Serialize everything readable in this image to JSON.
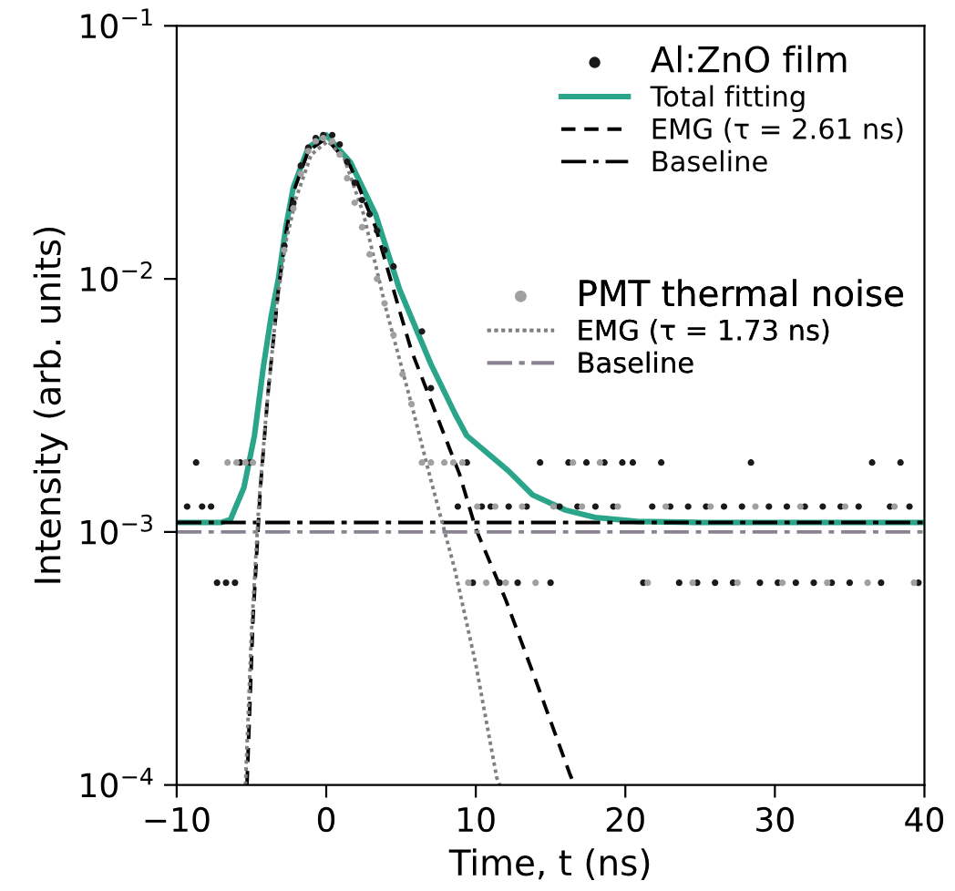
{
  "chart_data": {
    "type": "line",
    "xlabel": "Time, t (ns)",
    "ylabel": "Intensity (arb. units)",
    "xlim": [
      -10,
      40
    ],
    "xticks": [
      {
        "value": -10,
        "label": "−10"
      },
      0,
      10,
      20,
      30,
      40
    ],
    "ylim": [
      0.0001,
      0.1
    ],
    "yticks": [
      {
        "value": 0.0001,
        "label": "10$^{−4}$"
      },
      {
        "value": 0.001,
        "label": "10$^{−3}$"
      },
      {
        "value": 0.01,
        "label": "10$^{−2}$"
      },
      {
        "value": 0.1,
        "label": "10$^{−1}$"
      }
    ],
    "log": "y",
    "grid": false,
    "legend": "top right",
    "series": [
      {
        "type": "scatter",
        "name": "Al:ZnO film",
        "color": "#1a1a1a",
        "marker": "circle",
        "x": [
          -9.3,
          -8.7,
          -8.3,
          -7.7,
          -7.3,
          -6.7,
          -6.1,
          -5.75,
          -5.1,
          -2.8,
          -2.2,
          -1.7,
          -1.2,
          -0.7,
          -0.2,
          0.4,
          0.9,
          1.4,
          1.9,
          2.4,
          2.9,
          3.4,
          3.9,
          4.5,
          6.4,
          7.0,
          8.8,
          9.4,
          9.8,
          10.4,
          11.0,
          11.6,
          12.2,
          12.8,
          13.4,
          14.3,
          15.0,
          15.6,
          16.2,
          16.8,
          17.4,
          18.0,
          18.6,
          19.2,
          19.8,
          20.5,
          21.2,
          21.8,
          22.4,
          23.0,
          23.6,
          24.2,
          24.8,
          25.4,
          26.0,
          26.6,
          27.2,
          27.8,
          28.4,
          29.0,
          29.6,
          30.2,
          30.8,
          31.4,
          32.0,
          32.6,
          33.2,
          33.8,
          34.4,
          35.0,
          35.6,
          36.5,
          37.1,
          37.7,
          38.4,
          39.0,
          39.6
        ],
        "values": [
          0.00126,
          0.00188,
          0.00126,
          0.00126,
          0.00063,
          0.00063,
          0.00063,
          0.00188,
          0.00188,
          0.0135,
          0.02,
          0.028,
          0.033,
          0.036,
          0.037,
          0.037,
          0.034,
          0.029,
          0.024,
          0.0205,
          0.018,
          0.0155,
          0.013,
          0.0112,
          0.0062,
          0.0037,
          0.00126,
          0.00188,
          0.00063,
          0.00126,
          0.00126,
          0.00063,
          0.00126,
          0.00063,
          0.00126,
          0.00188,
          0.00063,
          0.00126,
          0.00188,
          0.00126,
          0.00188,
          0.00126,
          0.00188,
          0.00126,
          0.00188,
          0.00188,
          0.00063,
          0.00126,
          0.00188,
          0.00126,
          0.00063,
          0.00126,
          0.00063,
          0.00126,
          0.00063,
          0.00126,
          0.00063,
          0.00126,
          0.00188,
          0.00063,
          0.00126,
          0.00063,
          0.00126,
          0.00063,
          0.00126,
          0.00063,
          0.00126,
          0.00063,
          0.00126,
          0.00063,
          0.00126,
          0.00188,
          0.00063,
          0.00126,
          0.00188,
          0.00126,
          0.00063
        ]
      },
      {
        "name": "Total fitting",
        "color": "#2aa58a",
        "line_style": "solid",
        "x": [
          -10,
          -7,
          -6.4,
          -5.5,
          -4.8,
          -4.2,
          -3.7,
          -3.2,
          -2.7,
          -2.2,
          -1.2,
          0,
          1.6,
          3.3,
          4.9,
          7.0,
          8.6,
          9.4,
          12.2,
          13.8,
          16,
          18,
          20.8,
          25,
          40
        ],
        "values": [
          0.00109,
          0.00109,
          0.00112,
          0.0015,
          0.0024,
          0.0045,
          0.007,
          0.01,
          0.016,
          0.023,
          0.033,
          0.037,
          0.029,
          0.018,
          0.0091,
          0.0046,
          0.00294,
          0.0024,
          0.00174,
          0.0014,
          0.00122,
          0.00114,
          0.0011,
          0.00109,
          0.00109
        ]
      },
      {
        "name": "EMG (τ = 2.61 ns)",
        "color": "#000000",
        "line_style": "dashed",
        "x": [
          -5.3,
          -4.9,
          -4.4,
          -3.9,
          -3.2,
          -2.7,
          -2.2,
          -1.2,
          0,
          1.6,
          3.3,
          4.9,
          5.7,
          7.0,
          8.9,
          10,
          12,
          14,
          16.3,
          16.6
        ],
        "values": [
          0.0001,
          0.00045,
          0.0015,
          0.0035,
          0.009,
          0.015,
          0.022,
          0.032,
          0.036,
          0.028,
          0.016,
          0.0075,
          0.0052,
          0.0033,
          0.0017,
          0.00103,
          0.00054,
          0.00026,
          0.00011,
          0.0001
        ]
      },
      {
        "name": "Baseline",
        "color": "#000000",
        "line_style": "dash-dot",
        "x": [
          -10,
          40
        ],
        "values": [
          0.00109,
          0.00109
        ]
      },
      {
        "type": "scatter",
        "name": "PMT thermal noise",
        "color": "#a0a0a0",
        "marker": "circle",
        "x": [
          -6.6,
          -6.0,
          -5.4,
          -4.9,
          -2.8,
          -2.2,
          -1.7,
          -1.2,
          -0.7,
          -0.2,
          0.4,
          0.9,
          1.4,
          1.9,
          2.4,
          2.9,
          3.4,
          3.9,
          4.5,
          5.1,
          5.7,
          6.4,
          7.0,
          7.9,
          8.5,
          9.1,
          9.5,
          10.1,
          10.7,
          11.3,
          12.0,
          13.1,
          14.0,
          15.2,
          16.5,
          17.1,
          18.3,
          19.5,
          21.5,
          22.7,
          24.5,
          25.7,
          27.5,
          28.7,
          30.5,
          31.7,
          33.5,
          34.7,
          36.2,
          38.0,
          39.3
        ],
        "values": [
          0.00188,
          0.00188,
          0.00188,
          0.00188,
          0.013,
          0.019,
          0.026,
          0.032,
          0.035,
          0.036,
          0.035,
          0.031,
          0.025,
          0.02,
          0.016,
          0.0125,
          0.01,
          0.008,
          0.006,
          0.0042,
          0.0032,
          0.00188,
          0.00188,
          0.00188,
          0.00188,
          0.00188,
          0.00063,
          0.00126,
          0.00063,
          0.00126,
          0.00063,
          0.00126,
          0.00063,
          0.00126,
          0.00188,
          0.00126,
          0.00188,
          0.00126,
          0.00063,
          0.00126,
          0.00063,
          0.00126,
          0.00063,
          0.00126,
          0.00063,
          0.00126,
          0.00063,
          0.00126,
          0.00063,
          0.00126,
          0.00063
        ]
      },
      {
        "name": "EMG (τ = 1.73 ns)",
        "color": "#808080",
        "line_style": "dotted",
        "x": [
          -5.4,
          -5.0,
          -4.5,
          -4.0,
          -3.3,
          -2.7,
          -2.0,
          -1.0,
          0.1,
          1.2,
          2.5,
          4.0,
          5.7,
          7.0,
          8.6,
          10,
          11.4,
          11.6
        ],
        "values": [
          0.0001,
          0.0004,
          0.0013,
          0.003,
          0.008,
          0.014,
          0.021,
          0.031,
          0.035,
          0.03,
          0.018,
          0.0076,
          0.0032,
          0.0016,
          0.00071,
          0.0003,
          0.000107,
          0.0001
        ]
      },
      {
        "name": "Baseline",
        "color": "#8a8290",
        "line_style": "dash-dot",
        "x": [
          -10,
          40
        ],
        "values": [
          0.001,
          0.001
        ]
      }
    ]
  }
}
